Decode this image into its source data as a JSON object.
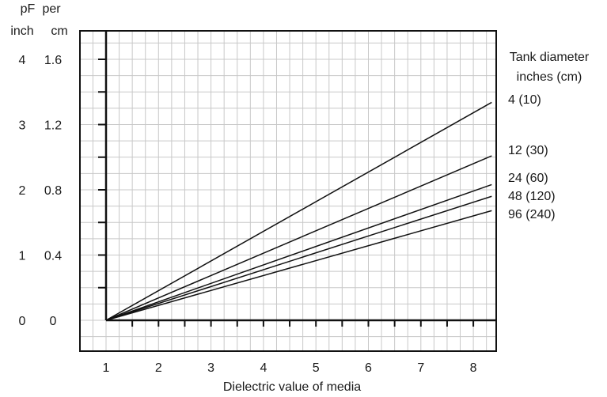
{
  "chart_data": {
    "type": "line",
    "y_header": {
      "left_line1": "pF",
      "left_line2": "inch",
      "right_line1": "per",
      "right_line2": "cm"
    },
    "y_ticks_left": [
      "0",
      "1",
      "2",
      "3",
      "4"
    ],
    "y_ticks_right": [
      "0",
      "0.4",
      "0.8",
      "1.2",
      "1.6"
    ],
    "y_tick_values": [
      0,
      1,
      2,
      3,
      4
    ],
    "x_ticks": [
      "1",
      "2",
      "3",
      "4",
      "5",
      "6",
      "7",
      "8"
    ],
    "x_tick_values": [
      1,
      2,
      3,
      4,
      5,
      6,
      7,
      8
    ],
    "xlabel": "Dielectric value of media",
    "xlim": [
      0.5,
      8.35
    ],
    "ylim": [
      -1,
      4.5
    ],
    "legend_title": [
      "Tank diameter",
      "inches (cm)"
    ],
    "grid": true,
    "series": [
      {
        "name": "4  (10)",
        "x": [
          1,
          8.35
        ],
        "y": [
          0,
          3.34
        ]
      },
      {
        "name": "12  (30)",
        "x": [
          1,
          8.35
        ],
        "y": [
          0,
          2.52
        ]
      },
      {
        "name": "24  (60)",
        "x": [
          1,
          8.35
        ],
        "y": [
          0,
          2.08
        ]
      },
      {
        "name": "48  (120)",
        "x": [
          1,
          8.35
        ],
        "y": [
          0,
          1.9
        ]
      },
      {
        "name": "96  (240)",
        "x": [
          1,
          8.35
        ],
        "y": [
          0,
          1.68
        ]
      }
    ]
  }
}
